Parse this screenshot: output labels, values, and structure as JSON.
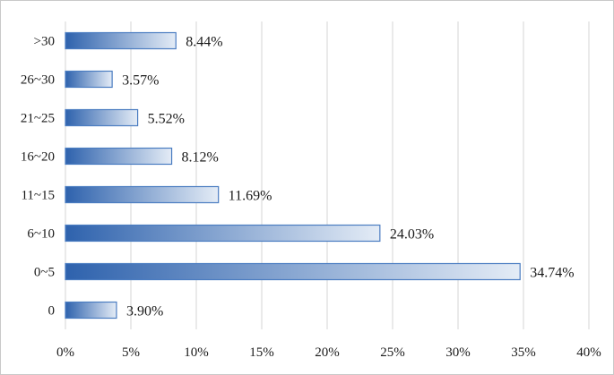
{
  "chart_data": {
    "type": "bar",
    "orientation": "horizontal",
    "categories": [
      ">30",
      "26~30",
      "21~25",
      "16~20",
      "11~15",
      "6~10",
      "0~5",
      "0"
    ],
    "values": [
      8.44,
      3.57,
      5.52,
      8.12,
      11.69,
      24.03,
      34.74,
      3.9
    ],
    "data_labels": [
      "8.44%",
      "3.57%",
      "5.52%",
      "8.12%",
      "11.69%",
      "24.03%",
      "34.74%",
      "3.90%"
    ],
    "xlim": [
      0,
      40
    ],
    "x_ticks": [
      0,
      5,
      10,
      15,
      20,
      25,
      30,
      35,
      40
    ],
    "x_tick_labels": [
      "0%",
      "5%",
      "10%",
      "15%",
      "20%",
      "25%",
      "30%",
      "35%",
      "40%"
    ],
    "grid": "vertical",
    "legend": "none",
    "bar_color_start": "#2e62ad",
    "bar_color_end": "#e4ecf6",
    "bar_border": "#4a7cc1",
    "grid_color": "#d6d6d6"
  }
}
